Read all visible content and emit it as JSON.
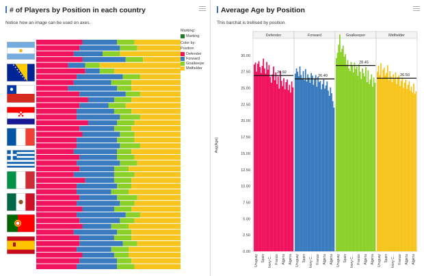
{
  "left": {
    "title": "# of Players by Position in each country",
    "subtitle": "Notice how an image can be used on axes.",
    "legend": {
      "marking_title": "Marking:",
      "marking_label": "Marking",
      "color_title": "Color by:",
      "color_by": "Position",
      "items": [
        {
          "label": "Defender",
          "color": "#f0135e"
        },
        {
          "label": "Forward",
          "color": "#3a7bbf"
        },
        {
          "label": "Goalkeepe",
          "color": "#8bd12a"
        },
        {
          "label": "Midfielder",
          "color": "#f7c51e"
        }
      ]
    },
    "flags": [
      "argentina-flag-icon",
      "bosnia-flag-icon",
      "chile-flag-icon",
      "croatia-flag-icon",
      "france-flag-icon",
      "greece-flag-icon",
      "italy-flag-icon",
      "mexico-flag-icon",
      "portugal-flag-icon",
      "spain-flag-icon"
    ]
  },
  "right": {
    "title": "Average Age by Position",
    "subtitle": "This barchat is trellised by position."
  },
  "chart_data": [
    {
      "type": "bar",
      "orientation": "horizontal",
      "stacked": true,
      "normalized": true,
      "series_colors": {
        "Defender": "#f0135e",
        "Forward": "#3a7bbf",
        "Goalkeeper": "#8bd12a",
        "Midfielder": "#f7c51e"
      },
      "rows": [
        [
          0.32,
          0.24,
          0.12,
          0.32
        ],
        [
          0.3,
          0.28,
          0.12,
          0.3
        ],
        [
          0.26,
          0.2,
          0.12,
          0.42
        ],
        [
          0.32,
          0.3,
          0.12,
          0.26
        ],
        [
          0.22,
          0.12,
          0.1,
          0.56
        ],
        [
          0.34,
          0.1,
          0.1,
          0.46
        ],
        [
          0.28,
          0.32,
          0.12,
          0.28
        ],
        [
          0.26,
          0.26,
          0.14,
          0.34
        ],
        [
          0.22,
          0.34,
          0.1,
          0.34
        ],
        [
          0.3,
          0.32,
          0.1,
          0.28
        ],
        [
          0.36,
          0.18,
          0.12,
          0.34
        ],
        [
          0.3,
          0.2,
          0.12,
          0.38
        ],
        [
          0.28,
          0.26,
          0.12,
          0.34
        ],
        [
          0.28,
          0.3,
          0.14,
          0.28
        ],
        [
          0.36,
          0.2,
          0.12,
          0.32
        ],
        [
          0.3,
          0.24,
          0.12,
          0.34
        ],
        [
          0.32,
          0.26,
          0.1,
          0.32
        ],
        [
          0.28,
          0.28,
          0.12,
          0.32
        ],
        [
          0.28,
          0.3,
          0.14,
          0.28
        ],
        [
          0.26,
          0.3,
          0.1,
          0.34
        ],
        [
          0.3,
          0.26,
          0.12,
          0.32
        ],
        [
          0.28,
          0.3,
          0.12,
          0.3
        ],
        [
          0.3,
          0.24,
          0.1,
          0.36
        ],
        [
          0.26,
          0.28,
          0.14,
          0.32
        ],
        [
          0.34,
          0.2,
          0.12,
          0.34
        ],
        [
          0.28,
          0.28,
          0.1,
          0.34
        ],
        [
          0.28,
          0.24,
          0.12,
          0.36
        ],
        [
          0.3,
          0.26,
          0.14,
          0.3
        ],
        [
          0.28,
          0.3,
          0.1,
          0.32
        ],
        [
          0.32,
          0.22,
          0.12,
          0.34
        ],
        [
          0.28,
          0.34,
          0.1,
          0.28
        ],
        [
          0.3,
          0.28,
          0.1,
          0.32
        ],
        [
          0.32,
          0.2,
          0.12,
          0.36
        ],
        [
          0.26,
          0.3,
          0.1,
          0.34
        ],
        [
          0.3,
          0.24,
          0.12,
          0.34
        ],
        [
          0.3,
          0.3,
          0.1,
          0.3
        ],
        [
          0.28,
          0.24,
          0.12,
          0.36
        ],
        [
          0.32,
          0.22,
          0.1,
          0.36
        ],
        [
          0.3,
          0.26,
          0.1,
          0.34
        ],
        [
          0.28,
          0.28,
          0.12,
          0.32
        ]
      ]
    },
    {
      "type": "bar",
      "trellis_by": "Position",
      "ylabel": "Avg(Age)",
      "ylim": [
        0,
        32.5
      ],
      "yticks": [
        "0.00",
        "2.50",
        "5.00",
        "7.50",
        "10.00",
        "12.50",
        "15.00",
        "17.50",
        "20.00",
        "22.50",
        "25.00",
        "27.50",
        "30.00"
      ],
      "x_tick_labels": [
        "Uruguay",
        "Spain",
        "Ivory C...",
        "France",
        "Algeria",
        "Algeria"
      ],
      "panels": [
        {
          "name": "Defender",
          "color": "#f0135e",
          "ref_label": "26.92",
          "ref": 26.92,
          "values": [
            28.6,
            28.9,
            27.5,
            28.7,
            29.1,
            28.2,
            27.3,
            28.4,
            29.5,
            28.0,
            27.2,
            29.0,
            27.8,
            28.5,
            26.7,
            25.8,
            27.1,
            28.3,
            26.2,
            27.4,
            25.6,
            26.8,
            24.9,
            27.6,
            26.1,
            25.3,
            26.5,
            24.8,
            25.9,
            26.3,
            24.7,
            25.5,
            24.3,
            26.0,
            25.1
          ]
        },
        {
          "name": "Forward",
          "color": "#3a7bbf",
          "ref_label": "26.40",
          "ref": 26.4,
          "values": [
            27.2,
            28.0,
            27.5,
            26.8,
            28.3,
            27.0,
            26.5,
            27.6,
            26.2,
            27.9,
            26.0,
            27.1,
            26.6,
            25.8,
            27.3,
            26.9,
            25.5,
            26.4,
            27.0,
            25.2,
            26.7,
            25.9,
            26.1,
            24.8,
            25.6,
            26.3,
            24.9,
            25.4,
            26.0,
            24.6,
            23.8,
            25.1,
            24.2,
            23.0,
            22.0
          ]
        },
        {
          "name": "Goalkeeper",
          "color": "#8bd12a",
          "ref_label": "28.45",
          "ref": 28.45,
          "values": [
            29.6,
            30.4,
            31.6,
            33.2,
            30.5,
            31.0,
            31.5,
            29.8,
            30.2,
            28.6,
            29.3,
            28.0,
            27.6,
            29.0,
            28.4,
            27.4,
            28.9,
            27.9,
            28.3,
            26.9,
            28.6,
            27.5,
            26.4,
            28.0,
            27.3,
            26.8,
            28.2,
            25.9,
            27.7,
            25.6,
            26.3,
            27.1,
            25.2,
            26.6,
            25.8
          ]
        },
        {
          "name": "Midfielder",
          "color": "#f7c51e",
          "ref_label": "26.50",
          "ref": 26.5,
          "values": [
            27.5,
            28.4,
            27.0,
            28.8,
            26.5,
            27.8,
            28.1,
            26.9,
            27.3,
            28.5,
            26.2,
            27.6,
            26.8,
            25.9,
            27.1,
            26.4,
            27.4,
            25.6,
            26.7,
            27.0,
            25.3,
            26.1,
            26.6,
            25.0,
            25.8,
            26.3,
            24.9,
            25.5,
            26.0,
            24.6,
            25.2,
            24.3,
            25.7,
            24.1,
            24.5
          ]
        }
      ]
    }
  ]
}
